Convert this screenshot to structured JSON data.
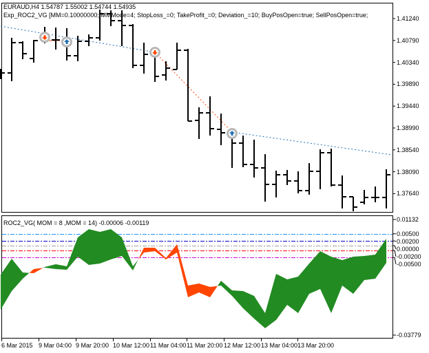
{
  "main": {
    "symbol_line": "EURAUD,H4  1.54787 1.55002 1.54744 1.54935",
    "expert_line": "Exp_ROC2_VG [MM=0.10000000; MMMode=4; StopLoss_=0; TakeProfit_=0; Deviation_=10; BuyPosOpen=true; SellPosOpen=true;",
    "price_ticks": [
      "1.41240",
      "1.40790",
      "1.40340",
      "1.39890",
      "1.39440",
      "1.38990",
      "1.38540",
      "1.38090",
      "1.37640"
    ]
  },
  "indicator": {
    "title": "ROC2_VG( MOM = 8 ,MOM = 14) -0.00006 -0.00119",
    "axis_labels": [
      "0.01132",
      "0.00500",
      "0.00200",
      "0.00000",
      "-0.00200",
      "-0.00500",
      "-0.03779"
    ],
    "levels": [
      {
        "value": 0.005,
        "color": "#1e90ff"
      },
      {
        "value": 0.002,
        "color": "#0000cd"
      },
      {
        "value": 0.0,
        "color": "#a0a0a0"
      },
      {
        "value": -0.002,
        "color": "#ff0000"
      },
      {
        "value": -0.005,
        "color": "#d400d4"
      }
    ],
    "colors": {
      "up": "#228b22",
      "down": "#ff4500"
    }
  },
  "time_axis": [
    "6 Mar 2015",
    "9 Mar 04:00",
    "9 Mar 20:00",
    "10 Mar 12:00",
    "11 Mar 04:00",
    "11 Mar 20:00",
    "12 Mar 12:00",
    "13 Mar 04:00",
    "13 Mar 20:00"
  ],
  "chart_data": [
    {
      "type": "ohlc",
      "symbol": "EURAUD",
      "timeframe": "H4",
      "ylim": [
        1.372,
        1.417
      ],
      "bars": [
        [
          1.40122,
          1.40207,
          1.39995,
          1.40122
        ],
        [
          1.40122,
          1.40844,
          1.39952,
          1.40745
        ],
        [
          1.40745,
          1.40773,
          1.40405,
          1.40518
        ],
        [
          1.40419,
          1.40801,
          1.40334,
          1.40787
        ],
        [
          1.40787,
          1.4107,
          1.40731,
          1.40801
        ],
        [
          1.40801,
          1.41056,
          1.40603,
          1.40801
        ],
        [
          1.40801,
          1.41042,
          1.40377,
          1.40476
        ],
        [
          1.40476,
          1.40886,
          1.40363,
          1.40773
        ],
        [
          1.40773,
          1.40914,
          1.40674,
          1.40844
        ],
        [
          1.40844,
          1.41424,
          1.40787,
          1.41339
        ],
        [
          1.41339,
          1.4141,
          1.41084,
          1.41197
        ],
        [
          1.41197,
          1.4141,
          1.40674,
          1.41098
        ],
        [
          1.41098,
          1.41127,
          1.40221,
          1.40278
        ],
        [
          1.40278,
          1.40745,
          1.40108,
          1.40504
        ],
        [
          1.40504,
          1.40589,
          1.39938,
          1.40051
        ],
        [
          1.4008,
          1.40363,
          1.39966,
          1.40221
        ],
        [
          1.40193,
          1.40745,
          1.40193,
          1.40589
        ],
        [
          1.40589,
          1.40617,
          1.39132,
          1.39132
        ],
        [
          1.39146,
          1.39415,
          1.38764,
          1.39301
        ],
        [
          1.39301,
          1.39641,
          1.38834,
          1.38976
        ],
        [
          1.38962,
          1.39287,
          1.38636,
          1.38891
        ],
        [
          1.38933,
          1.38933,
          1.38169,
          1.38679
        ],
        [
          1.38679,
          1.38834,
          1.38184,
          1.3824
        ],
        [
          1.3824,
          1.3875,
          1.37971,
          1.38169
        ],
        [
          1.38169,
          1.38452,
          1.37476,
          1.3783
        ],
        [
          1.3783,
          1.38113,
          1.37561,
          1.38028
        ],
        [
          1.38028,
          1.38127,
          1.37816,
          1.37901
        ],
        [
          1.37901,
          1.38099,
          1.37646,
          1.37702
        ],
        [
          1.37702,
          1.38268,
          1.37618,
          1.38099
        ],
        [
          1.38099,
          1.38551,
          1.37731,
          1.38481
        ],
        [
          1.38481,
          1.38566,
          1.37787,
          1.37816
        ],
        [
          1.37816,
          1.38014,
          1.37335,
          1.37575
        ],
        [
          1.37575,
          1.37575,
          1.37278,
          1.37363
        ],
        [
          1.37462,
          1.37717,
          1.37419,
          1.37561
        ],
        [
          1.37561,
          1.37787,
          1.37462,
          1.37561
        ],
        [
          1.37561,
          1.38141,
          1.37335,
          1.38028
        ]
      ],
      "bar_fields": [
        "open",
        "high",
        "low",
        "close"
      ],
      "trades": [
        {
          "bar": 4,
          "price": 1.40856,
          "side": "sell"
        },
        {
          "bar": 6,
          "price": 1.40759,
          "side": "buy"
        },
        {
          "bar": 14,
          "price": 1.40547,
          "side": "sell"
        },
        {
          "bar": 21,
          "price": 1.38877,
          "side": "buy"
        }
      ],
      "trade_lines": [
        {
          "from": [
            4,
            1.40787
          ],
          "to": [
            6,
            1.40787
          ],
          "color": "#ff4500",
          "style": "dashed"
        },
        {
          "from": [
            0,
            1.41084
          ],
          "to": [
            14,
            1.40547
          ],
          "color": "#1e6eb4",
          "style": "dotted"
        },
        {
          "from": [
            14,
            1.40547
          ],
          "to": [
            21,
            1.38905
          ],
          "color": "#ff4500",
          "style": "dotted"
        },
        {
          "from": [
            21,
            1.38905
          ],
          "to": [
            35.5,
            1.38438
          ],
          "color": "#1e6eb4",
          "style": "dotted"
        }
      ]
    },
    {
      "type": "area",
      "ylim": [
        -0.03779,
        0.01132
      ],
      "series": [
        {
          "name": "MOM = 8",
          "values": [
            -0.01218,
            -0.00551,
            -0.01131,
            -0.0116,
            -0.00899,
            -0.00783,
            -0.0087,
            0.00348,
            0.00696,
            0.0058,
            0.00696,
            0.00348,
            -0.0087,
            -0.0029,
            -0.00232,
            -0.0058,
            -0.0029,
            -0.02175,
            -0.01972,
            -0.02175,
            -0.01479,
            -0.01885,
            -0.01914,
            -0.02117,
            -0.02842,
            -0.01189,
            -0.01421,
            -0.01305,
            -0.00754,
            -0.00232,
            -0.00464,
            -0.00609,
            -0.00464,
            -0.00435,
            -0.00377,
            0.0029
          ]
        },
        {
          "name": "MOM = 14",
          "values": [
            -0.02697,
            -0.01914,
            -0.01392,
            -0.00986,
            -0.00928,
            -0.00986,
            -0.01015,
            -0.00464,
            -0.00812,
            -0.00754,
            -0.0058,
            -0.00435,
            -0.01044,
            -0.00087,
            -0.00087,
            -0.00522,
            0.00058,
            -0.01682,
            -0.01595,
            -0.0174,
            -0.01682,
            -0.02117,
            -0.02639,
            -0.03074,
            -0.0348,
            -0.03132,
            -0.02494,
            -0.02842,
            -0.0203,
            -0.01827,
            -0.02842,
            -0.01682,
            -0.0203,
            -0.0145,
            -0.01392,
            -0.00725
          ]
        }
      ]
    }
  ]
}
